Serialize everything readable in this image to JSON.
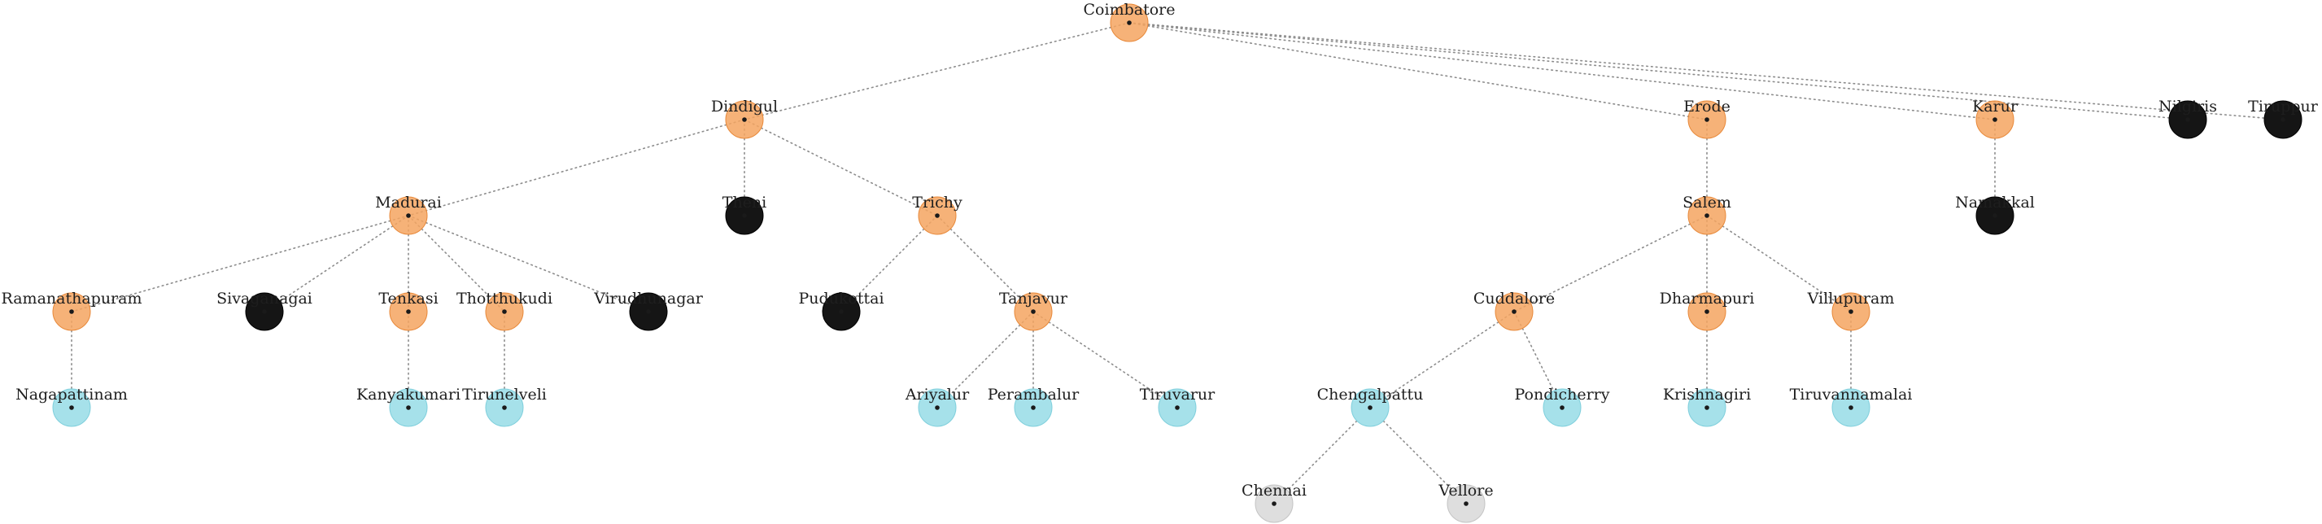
{
  "colors": {
    "orange": "#f4a460",
    "orange_stroke": "#e8893a",
    "black": "#151515",
    "black_stroke": "#000000",
    "cyan": "#a6e1ea",
    "cyan_stroke": "#7fcfdc",
    "gray": "#dedede",
    "gray_stroke": "#c4c4c4",
    "edge": "#8c8c8c"
  },
  "tree": {
    "name": "Coimbatore",
    "kind": "orange",
    "children": [
      {
        "name": "Dindigul",
        "kind": "orange",
        "children": [
          {
            "name": "Madurai",
            "kind": "orange",
            "children": [
              {
                "name": "Ramanathapuram",
                "kind": "orange",
                "children": [
                  {
                    "name": "Nagapattinam",
                    "kind": "cyan",
                    "children": []
                  }
                ]
              },
              {
                "name": "Sivaganagai",
                "kind": "black",
                "children": []
              },
              {
                "name": "Tenkasi",
                "kind": "orange",
                "children": [
                  {
                    "name": "Kanyakumari",
                    "kind": "cyan",
                    "children": []
                  }
                ]
              },
              {
                "name": "Thotthukudi",
                "kind": "orange",
                "children": [
                  {
                    "name": "Tirunelveli",
                    "kind": "cyan",
                    "children": []
                  }
                ]
              },
              {
                "name": "Virudhunagar",
                "kind": "black",
                "children": []
              }
            ]
          },
          {
            "name": "Theni",
            "kind": "black",
            "children": []
          },
          {
            "name": "Trichy",
            "kind": "orange",
            "children": [
              {
                "name": "Pudukottai",
                "kind": "black",
                "children": []
              },
              {
                "name": "Tanjavur",
                "kind": "orange",
                "children": [
                  {
                    "name": "Ariyalur",
                    "kind": "cyan",
                    "children": []
                  },
                  {
                    "name": "Perambalur",
                    "kind": "cyan",
                    "children": []
                  },
                  {
                    "name": "Tiruvarur",
                    "kind": "cyan",
                    "children": []
                  }
                ]
              }
            ]
          }
        ]
      },
      {
        "name": "Erode",
        "kind": "orange",
        "children": [
          {
            "name": "Salem",
            "kind": "orange",
            "children": [
              {
                "name": "Cuddalore",
                "kind": "orange",
                "children": [
                  {
                    "name": "Chengalpattu",
                    "kind": "cyan",
                    "children": [
                      {
                        "name": "Chennai",
                        "kind": "gray",
                        "children": []
                      },
                      {
                        "name": "Vellore",
                        "kind": "gray",
                        "children": []
                      }
                    ]
                  },
                  {
                    "name": "Pondicherry",
                    "kind": "cyan",
                    "children": []
                  }
                ]
              },
              {
                "name": "Dharmapuri",
                "kind": "orange",
                "children": [
                  {
                    "name": "Krishnagiri",
                    "kind": "cyan",
                    "children": []
                  }
                ]
              },
              {
                "name": "Villupuram",
                "kind": "orange",
                "children": [
                  {
                    "name": "Tiruvannamalai",
                    "kind": "cyan",
                    "children": []
                  }
                ]
              }
            ]
          }
        ]
      },
      {
        "name": "Karur",
        "kind": "orange",
        "children": [
          {
            "name": "Namakkal",
            "kind": "black",
            "children": []
          }
        ]
      },
      {
        "name": "Nilgiris",
        "kind": "black",
        "children": []
      },
      {
        "name": "Tiruppur",
        "kind": "black",
        "children": []
      }
    ]
  }
}
